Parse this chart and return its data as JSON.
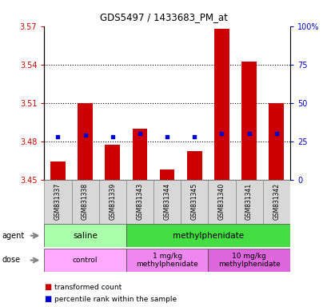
{
  "title": "GDS5497 / 1433683_PM_at",
  "samples": [
    "GSM831337",
    "GSM831338",
    "GSM831339",
    "GSM831343",
    "GSM831344",
    "GSM831345",
    "GSM831340",
    "GSM831341",
    "GSM831342"
  ],
  "red_values": [
    3.464,
    3.51,
    3.477,
    3.49,
    3.458,
    3.472,
    3.568,
    3.542,
    3.51
  ],
  "blue_values": [
    28,
    29,
    28,
    30,
    28,
    28,
    30,
    30,
    30
  ],
  "y_min": 3.45,
  "y_max": 3.57,
  "y_ticks_left": [
    3.45,
    3.48,
    3.51,
    3.54,
    3.57
  ],
  "y_ticks_right": [
    0,
    25,
    50,
    75,
    100
  ],
  "agent_groups": [
    {
      "label": "saline",
      "start": 0,
      "end": 3,
      "color": "#aaffaa"
    },
    {
      "label": "methylphenidate",
      "start": 3,
      "end": 9,
      "color": "#44dd44"
    }
  ],
  "dose_groups": [
    {
      "label": "control",
      "start": 0,
      "end": 3,
      "color": "#ffaaff"
    },
    {
      "label": "1 mg/kg\nmethylphenidate",
      "start": 3,
      "end": 6,
      "color": "#ee88ee"
    },
    {
      "label": "10 mg/kg\nmethylphenidate",
      "start": 6,
      "end": 9,
      "color": "#dd66dd"
    }
  ],
  "bar_color": "#cc0000",
  "blue_color": "#0000cc",
  "bar_width": 0.55,
  "bg_color": "#d8d8d8",
  "left_axis_color": "#cc0000",
  "right_axis_color": "#0000cc",
  "legend_red": "transformed count",
  "legend_blue": "percentile rank within the sample",
  "dotted_lines": [
    3.48,
    3.51,
    3.54
  ]
}
